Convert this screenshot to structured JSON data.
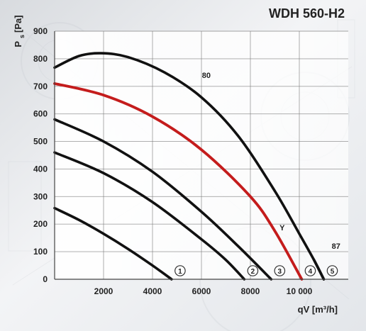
{
  "chart_data": {
    "type": "line",
    "title": "WDH 560-H2",
    "xlabel": "qV [m³/h]",
    "ylabel_main": "P",
    "ylabel_sub": "s",
    "ylabel_unit": "[Pa]",
    "xlim": [
      0,
      12000
    ],
    "ylim": [
      0,
      900
    ],
    "x_ticks": [
      {
        "value": 2000,
        "label": "2000"
      },
      {
        "value": 4000,
        "label": "4000"
      },
      {
        "value": 6000,
        "label": "6000"
      },
      {
        "value": 8000,
        "label": "8000"
      },
      {
        "value": 10000,
        "label": "10 000"
      }
    ],
    "y_ticks": [
      {
        "value": 0,
        "label": "0"
      },
      {
        "value": 100,
        "label": "100"
      },
      {
        "value": 200,
        "label": "200"
      },
      {
        "value": 300,
        "label": "300"
      },
      {
        "value": 400,
        "label": "400"
      },
      {
        "value": 500,
        "label": "500"
      },
      {
        "value": 600,
        "label": "600"
      },
      {
        "value": 700,
        "label": "700"
      },
      {
        "value": 800,
        "label": "800"
      },
      {
        "value": 900,
        "label": "900"
      }
    ],
    "grid": true,
    "series": [
      {
        "marker": "1",
        "color": "#111111",
        "points": [
          [
            0,
            258
          ],
          [
            1000,
            215
          ],
          [
            2000,
            165
          ],
          [
            3000,
            110
          ],
          [
            4000,
            50
          ],
          [
            4780,
            0
          ]
        ]
      },
      {
        "marker": "2",
        "color": "#111111",
        "points": [
          [
            0,
            460
          ],
          [
            2000,
            385
          ],
          [
            4000,
            280
          ],
          [
            6000,
            145
          ],
          [
            7000,
            70
          ],
          [
            7750,
            0
          ]
        ]
      },
      {
        "marker": "3",
        "color": "#111111",
        "points": [
          [
            0,
            580
          ],
          [
            2000,
            500
          ],
          [
            4000,
            390
          ],
          [
            6000,
            245
          ],
          [
            7500,
            120
          ],
          [
            8850,
            0
          ]
        ]
      },
      {
        "label": "Y",
        "marker": "4",
        "color": "#c41c1c",
        "points": [
          [
            0,
            710
          ],
          [
            2000,
            668
          ],
          [
            4000,
            590
          ],
          [
            6000,
            470
          ],
          [
            8000,
            300
          ],
          [
            9000,
            175
          ],
          [
            10100,
            0
          ]
        ]
      },
      {
        "label": "80",
        "color": "#111111",
        "points": [
          [
            0,
            768
          ],
          [
            1000,
            810
          ],
          [
            1900,
            820
          ],
          [
            3000,
            806
          ],
          [
            4500,
            750
          ],
          [
            6000,
            660
          ],
          [
            7500,
            520
          ],
          [
            9000,
            320
          ],
          [
            10000,
            165
          ],
          [
            10600,
            70
          ],
          [
            11000,
            0
          ]
        ]
      },
      {
        "label": "87",
        "marker": "5",
        "color": "#111111",
        "points": [
          [
            10600,
            70
          ],
          [
            11000,
            0
          ]
        ]
      }
    ]
  }
}
